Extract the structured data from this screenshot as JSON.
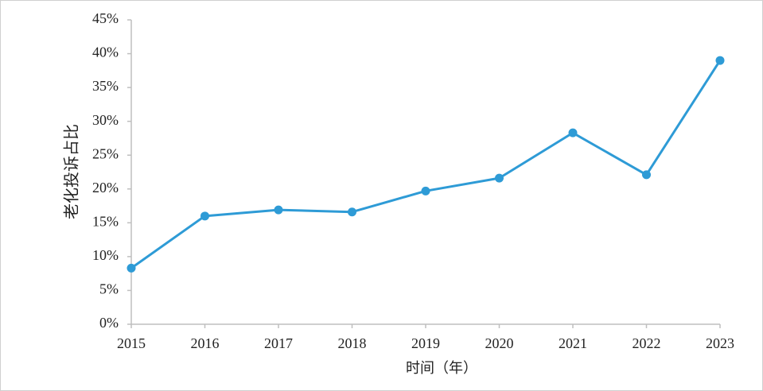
{
  "chart_data": {
    "type": "line",
    "x_label": "时间（年）",
    "y_label": "老化投诉占比",
    "categories": [
      "2015",
      "2016",
      "2017",
      "2018",
      "2019",
      "2020",
      "2021",
      "2022",
      "2023"
    ],
    "values": [
      8.3,
      16.0,
      16.9,
      16.6,
      19.7,
      21.6,
      28.3,
      22.1,
      39.0
    ],
    "color": "#2e9bd6",
    "ylim": [
      0,
      45
    ],
    "yticks": [
      {
        "value": 0,
        "label": "0%"
      },
      {
        "value": 5,
        "label": "5%"
      },
      {
        "value": 10,
        "label": "10%"
      },
      {
        "value": 15,
        "label": "15%"
      },
      {
        "value": 20,
        "label": "20%"
      },
      {
        "value": 25,
        "label": "25%"
      },
      {
        "value": 30,
        "label": "30%"
      },
      {
        "value": 35,
        "label": "35%"
      },
      {
        "value": 40,
        "label": "40%"
      },
      {
        "value": 45,
        "label": "45%"
      }
    ]
  }
}
